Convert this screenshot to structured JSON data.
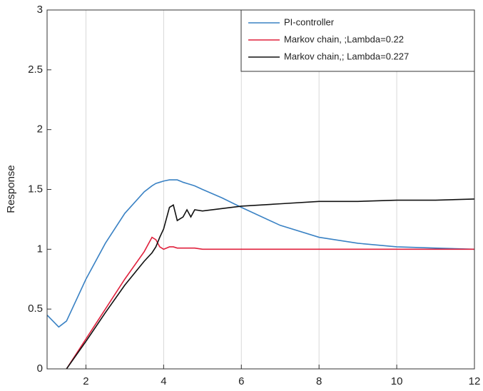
{
  "chart_data": {
    "type": "line",
    "ylabel": "Response",
    "x": [
      1,
      1.3,
      1.5,
      2,
      2.5,
      3,
      3.5,
      3.7,
      3.8,
      3.9,
      4,
      4.15,
      4.25,
      4.35,
      4.5,
      4.6,
      4.7,
      4.8,
      5,
      5.5,
      6,
      7,
      8,
      9,
      10,
      11,
      12
    ],
    "series": [
      {
        "name": "PI-controller",
        "color": "#3a82c4",
        "values": [
          0.45,
          0.35,
          0.4,
          0.75,
          1.05,
          1.3,
          1.48,
          1.53,
          1.55,
          1.56,
          1.57,
          1.58,
          1.58,
          1.58,
          1.56,
          1.55,
          1.54,
          1.53,
          1.5,
          1.43,
          1.35,
          1.2,
          1.1,
          1.05,
          1.02,
          1.01,
          1.0
        ]
      },
      {
        "name": "Markov chain, ;Lambda=0.22",
        "color": "#e0203c",
        "values": [
          null,
          null,
          0,
          0.25,
          0.5,
          0.75,
          0.98,
          1.1,
          1.08,
          1.02,
          1.0,
          1.02,
          1.02,
          1.01,
          1.01,
          1.01,
          1.01,
          1.01,
          1.0,
          1.0,
          1.0,
          1.0,
          1.0,
          1.0,
          1.0,
          1.0,
          1.0
        ]
      },
      {
        "name": "Markov chain,; Lambda=0.227",
        "color": "#111111",
        "values": [
          null,
          null,
          0,
          0.23,
          0.47,
          0.7,
          0.9,
          0.97,
          1.02,
          1.1,
          1.17,
          1.35,
          1.37,
          1.24,
          1.27,
          1.33,
          1.27,
          1.33,
          1.32,
          1.34,
          1.36,
          1.38,
          1.4,
          1.4,
          1.41,
          1.41,
          1.42
        ]
      }
    ],
    "xlim": [
      1,
      12
    ],
    "xticks": [
      2,
      4,
      6,
      8,
      10,
      12
    ],
    "ylim": [
      0,
      3
    ],
    "yticks": [
      0,
      0.5,
      1,
      1.5,
      2,
      2.5,
      3
    ],
    "grid": "x",
    "legend": "upper right"
  }
}
